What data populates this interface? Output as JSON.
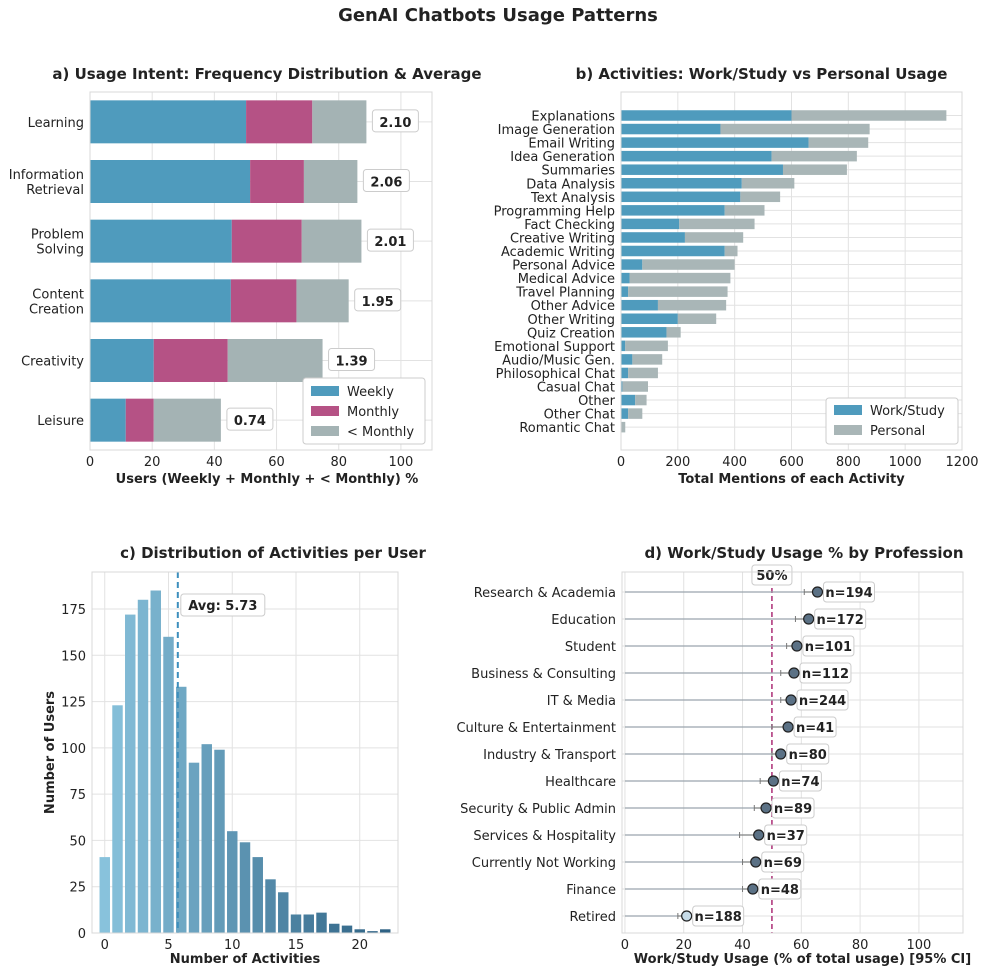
{
  "figure_title": "GenAI Chatbots Usage Patterns",
  "colors": {
    "weekly": "#4f9bbd",
    "monthly": "#b55285",
    "less_monthly": "#a4b3b4",
    "work": "#4f9bbd",
    "personal": "#a9b6b7",
    "threshold": "#b03a7e",
    "avg_line": "#3d8fbd",
    "point": "#5b7185",
    "point_retired": "#c6dbe8"
  },
  "chart_data": [
    {
      "id": "a",
      "type": "bar",
      "orientation": "horizontal",
      "stacked": true,
      "title": "a) Usage Intent: Frequency Distribution & Average",
      "xlabel": "Users (Weekly + Monthly + < Monthly) %",
      "categories": [
        "Learning",
        "Information\nRetrieval",
        "Problem\nSolving",
        "Content\nCreation",
        "Creativity",
        "Leisure"
      ],
      "series": [
        {
          "name": "Weekly",
          "values": [
            50.2,
            51.5,
            45.6,
            45.3,
            20.5,
            11.5
          ]
        },
        {
          "name": "Monthly",
          "values": [
            21.3,
            17.3,
            22.5,
            21.1,
            23.8,
            9.0
          ]
        },
        {
          "name": "< Monthly",
          "values": [
            17.4,
            17.2,
            19.2,
            16.8,
            30.5,
            21.6
          ]
        }
      ],
      "annotations": [
        "2.10",
        "2.06",
        "2.01",
        "1.95",
        "1.39",
        "0.74"
      ],
      "xlim": [
        0,
        110
      ],
      "xticks": [
        "0",
        "20",
        "40",
        "60",
        "80",
        "100"
      ],
      "legend": "bottom-right"
    },
    {
      "id": "b",
      "type": "bar",
      "orientation": "horizontal",
      "stacked": true,
      "title": "b) Activities: Work/Study vs Personal Usage",
      "xlabel": "Total Mentions of each Activity",
      "categories": [
        "Explanations",
        "Image Generation",
        "Email Writing",
        "Idea Generation",
        "Summaries",
        "Data Analysis",
        "Text Analysis",
        "Programming Help",
        "Fact Checking",
        "Creative Writing",
        "Academic Writing",
        "Personal Advice",
        "Medical Advice",
        "Travel Planning",
        "Other Advice",
        "Other Writing",
        "Quiz Creation",
        "Emotional Support",
        "Audio/Music Gen.",
        "Philosophical Chat",
        "Casual Chat",
        "Other",
        "Other Chat",
        "Romantic Chat"
      ],
      "series": [
        {
          "name": "Work/Study",
          "values": [
            600,
            350,
            660,
            530,
            570,
            425,
            420,
            365,
            205,
            225,
            365,
            75,
            30,
            25,
            130,
            200,
            160,
            15,
            40,
            25,
            5,
            50,
            25,
            0
          ]
        },
        {
          "name": "Personal",
          "values": [
            545,
            525,
            210,
            300,
            225,
            185,
            140,
            140,
            265,
            205,
            45,
            325,
            355,
            350,
            240,
            135,
            50,
            150,
            105,
            105,
            90,
            40,
            50,
            15
          ]
        }
      ],
      "xlim": [
        0,
        1200
      ],
      "xticks": [
        "0",
        "200",
        "400",
        "600",
        "800",
        "1000",
        "1200"
      ],
      "legend": "bottom-right"
    },
    {
      "id": "c",
      "type": "bar",
      "title": "c) Distribution of Activities per User",
      "xlabel": "Number of Activities",
      "ylabel": "Number of Users",
      "x": [
        0,
        1,
        2,
        3,
        4,
        5,
        6,
        7,
        8,
        9,
        10,
        11,
        12,
        13,
        14,
        15,
        16,
        17,
        18,
        19,
        20,
        21,
        22
      ],
      "values": [
        41,
        123,
        172,
        180,
        185,
        160,
        133,
        92,
        102,
        99,
        55,
        49,
        41,
        29,
        22,
        10,
        10,
        11,
        5,
        4,
        2,
        1,
        2
      ],
      "average": 5.73,
      "avg_label": "Avg: 5.73",
      "xlim": [
        -1,
        23
      ],
      "ylim": [
        0,
        195
      ],
      "xticks": [
        "0",
        "5",
        "10",
        "15",
        "20"
      ],
      "yticks": [
        "0",
        "25",
        "50",
        "75",
        "100",
        "125",
        "150",
        "175"
      ]
    },
    {
      "id": "d",
      "type": "scatter",
      "title": "d) Work/Study Usage % by Profession",
      "xlabel": "Work/Study Usage (% of total usage) [95% CI]",
      "categories": [
        "Research & Academia",
        "Education",
        "Student",
        "Business & Consulting",
        "IT & Media",
        "Culture & Entertainment",
        "Industry & Transport",
        "Healthcare",
        "Security & Public Admin",
        "Services & Hospitality",
        "Currently Not Working",
        "Finance",
        "Retired"
      ],
      "values": [
        65.5,
        62.5,
        58.5,
        57.5,
        56.5,
        55.5,
        53.0,
        50.5,
        48.0,
        45.5,
        44.5,
        43.5,
        21.0
      ],
      "ci_low": [
        61,
        58,
        55,
        53,
        53,
        50,
        50,
        46,
        44,
        39,
        40,
        40,
        18
      ],
      "ci_high": [
        69,
        66,
        62,
        61,
        60,
        61,
        56,
        55,
        52,
        51,
        49,
        47,
        24
      ],
      "n_labels": [
        "n=194",
        "n=172",
        "n=101",
        "n=112",
        "n=244",
        "n=41",
        "n=80",
        "n=74",
        "n=89",
        "n=37",
        "n=69",
        "n=48",
        "n=188"
      ],
      "threshold": 50,
      "threshold_label": "50%",
      "xlim": [
        -1,
        115
      ],
      "xticks": [
        "0",
        "20",
        "40",
        "60",
        "80",
        "100"
      ]
    }
  ]
}
